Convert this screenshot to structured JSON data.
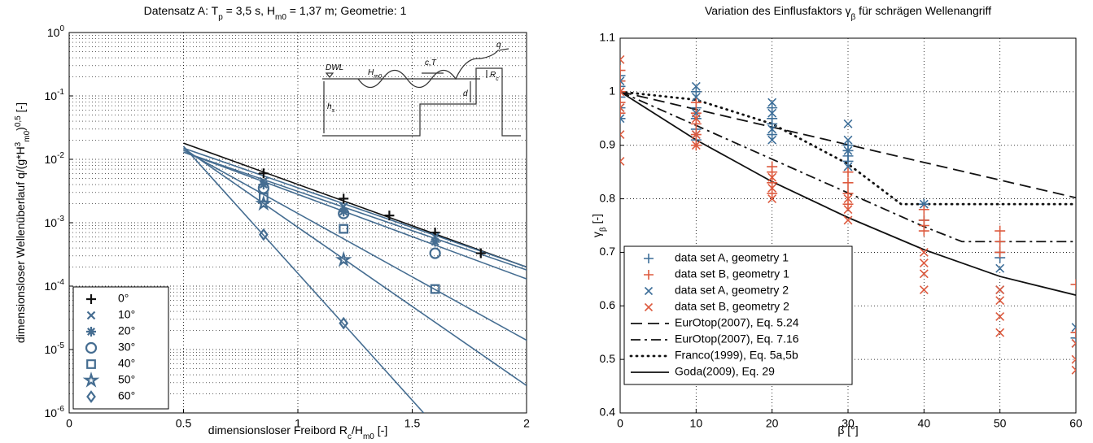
{
  "chart_data": [
    {
      "type": "scatter",
      "yscale": "log",
      "grid": true,
      "minor_grid": true,
      "legend": "lower left",
      "title": [
        {
          "text": "Datensatz A: T"
        },
        {
          "text": "p",
          "script": "sub"
        },
        {
          "text": " = 3,5 s, H"
        },
        {
          "text": "m0",
          "script": "sub"
        },
        {
          "text": " = 1,37 m; Geometrie: 1"
        }
      ],
      "xlabel": [
        {
          "text": "dimensionsloser Freibord R"
        },
        {
          "text": "c",
          "script": "sub"
        },
        {
          "text": "/H"
        },
        {
          "text": "m0",
          "script": "sub"
        },
        {
          "text": " [-]"
        }
      ],
      "ylabel": [
        {
          "text": "dimensionsloser Wellenüberlauf q/(g*H"
        },
        {
          "text": "3",
          "script": "sup"
        },
        {
          "text": "m0",
          "script": "sub"
        },
        {
          "text": ")"
        },
        {
          "text": "0,5",
          "script": "sup"
        },
        {
          "text": " [-]"
        }
      ],
      "xlim": [
        0,
        2
      ],
      "xticks": [
        0,
        0.5,
        1,
        1.5,
        2
      ],
      "ylim": [
        1e-06,
        1
      ],
      "yticks": [
        {
          "value": 1e-06,
          "label": "10",
          "exponent": "-6"
        },
        {
          "value": 1e-05,
          "label": "10",
          "exponent": "-5"
        },
        {
          "value": 0.0001,
          "label": "10",
          "exponent": "-4"
        },
        {
          "value": 0.001,
          "label": "10",
          "exponent": "-3"
        },
        {
          "value": 0.01,
          "label": "10",
          "exponent": "-2"
        },
        {
          "value": 0.1,
          "label": "10",
          "exponent": "-1"
        },
        {
          "value": 1,
          "label": "10",
          "exponent": "0"
        }
      ],
      "inset_labels": [
        [
          "DWL"
        ],
        [
          "H",
          "m0"
        ],
        [
          "c,T"
        ],
        [
          "q"
        ],
        [
          "R",
          "c"
        ],
        [
          "d"
        ],
        [
          "h",
          "s"
        ]
      ],
      "series": [
        {
          "name": "0°",
          "marker": "plus",
          "color": "#111111",
          "x": [
            0.85,
            1.2,
            1.4,
            1.6,
            1.8
          ],
          "values": [
            0.006,
            0.0024,
            0.0013,
            0.0007,
            0.00033
          ],
          "fit_x": [
            0.5,
            2
          ],
          "fit_values": [
            0.018,
            0.0002
          ]
        },
        {
          "name": "10°",
          "marker": "x",
          "color": "#456d91",
          "x": [
            0.85,
            1.2,
            1.6
          ],
          "values": [
            0.0045,
            0.0018,
            0.0006
          ],
          "fit_x": [
            0.5,
            2
          ],
          "fit_values": [
            0.015,
            0.0002
          ]
        },
        {
          "name": "20°",
          "marker": "asterisk",
          "color": "#456d91",
          "x": [
            0.85,
            1.2,
            1.6
          ],
          "values": [
            0.004,
            0.0015,
            0.0005
          ],
          "fit_x": [
            0.5,
            2
          ],
          "fit_values": [
            0.013,
            0.00018
          ]
        },
        {
          "name": "30°",
          "marker": "circle",
          "color": "#456d91",
          "x": [
            0.85,
            1.2,
            1.6
          ],
          "values": [
            0.0035,
            0.0014,
            0.00033
          ],
          "fit_x": [
            0.5,
            2
          ],
          "fit_values": [
            0.013,
            0.00013
          ]
        },
        {
          "name": "40°",
          "marker": "square",
          "color": "#456d91",
          "x": [
            0.85,
            1.2,
            1.6
          ],
          "values": [
            0.0025,
            0.0008,
            9e-05
          ],
          "fit_x": [
            0.5,
            2
          ],
          "fit_values": [
            0.014,
            1.4e-05
          ]
        },
        {
          "name": "50°",
          "marker": "star",
          "color": "#456d91",
          "x": [
            0.85,
            1.2
          ],
          "values": [
            0.002,
            0.00026
          ],
          "fit_x": [
            0.5,
            2
          ],
          "fit_values": [
            0.015,
            2.7e-06
          ]
        },
        {
          "name": "60°",
          "marker": "diamond",
          "color": "#456d91",
          "x": [
            0.85,
            1.2
          ],
          "values": [
            0.00065,
            2.6e-05
          ],
          "fit_x": [
            0.5,
            1.55
          ],
          "fit_values": [
            0.016,
            1e-06
          ]
        }
      ]
    },
    {
      "type": "scatter",
      "grid": true,
      "legend": "lower left",
      "title": [
        {
          "text": "Variation des Einflusfaktors γ"
        },
        {
          "text": "β",
          "script": "sub"
        },
        {
          "text": " für schrägen Wellenangriff"
        }
      ],
      "xlabel": [
        {
          "text": "β [°]"
        }
      ],
      "ylabel": [
        {
          "text": "γ"
        },
        {
          "text": "β",
          "script": "sub"
        },
        {
          "text": " [-]"
        }
      ],
      "xlim": [
        0,
        60
      ],
      "xticks": [
        0,
        10,
        20,
        30,
        40,
        50,
        60
      ],
      "ylim": [
        0.4,
        1.1
      ],
      "yticks": [
        0.4,
        0.5,
        0.6,
        0.7,
        0.8,
        0.9,
        1,
        1.1
      ],
      "series": [
        {
          "name": "data set A, geometry 1",
          "marker": "plus",
          "color": "#3e6f99",
          "x": [
            0,
            0,
            0,
            0,
            0,
            0,
            0,
            10,
            10,
            10,
            10,
            10,
            20,
            20,
            20,
            20,
            30,
            30,
            30,
            30,
            40,
            40,
            50,
            50,
            60,
            60
          ],
          "values": [
            0.95,
            0.97,
            0.99,
            1.0,
            1.01,
            1.02,
            1.03,
            0.91,
            0.93,
            0.95,
            0.97,
            1.0,
            0.92,
            0.94,
            0.95,
            0.97,
            0.87,
            0.88,
            0.89,
            0.9,
            0.76,
            0.79,
            0.69,
            0.7,
            0.54,
            0.55
          ]
        },
        {
          "name": "data set B, geometry 1",
          "marker": "plus",
          "color": "#dd5a3e",
          "x": [
            0,
            0,
            0,
            0,
            0,
            10,
            10,
            10,
            10,
            10,
            20,
            20,
            20,
            20,
            30,
            30,
            30,
            30,
            40,
            40,
            40,
            40,
            50,
            50,
            50,
            60,
            60
          ],
          "values": [
            0.96,
            0.98,
            1.0,
            1.02,
            1.04,
            0.9,
            0.92,
            0.94,
            0.96,
            0.98,
            0.81,
            0.83,
            0.85,
            0.86,
            0.79,
            0.81,
            0.83,
            0.85,
            0.74,
            0.75,
            0.76,
            0.78,
            0.7,
            0.72,
            0.74,
            0.64,
            0.55
          ]
        },
        {
          "name": "data set A, geometry 2",
          "marker": "x",
          "color": "#3e6f99",
          "x": [
            0,
            0,
            0,
            0,
            10,
            10,
            10,
            10,
            20,
            20,
            20,
            20,
            30,
            30,
            30,
            30,
            40,
            50,
            50,
            60,
            60
          ],
          "values": [
            0.95,
            0.97,
            1.0,
            1.02,
            0.92,
            0.96,
            0.99,
            1.01,
            0.91,
            0.93,
            0.96,
            0.98,
            0.86,
            0.89,
            0.91,
            0.94,
            0.79,
            0.63,
            0.67,
            0.53,
            0.56
          ]
        },
        {
          "name": "data set B, geometry 2",
          "marker": "x",
          "color": "#dd5a3e",
          "x": [
            0,
            0,
            0,
            0,
            0,
            10,
            10,
            10,
            20,
            20,
            20,
            30,
            30,
            30,
            40,
            40,
            40,
            40,
            50,
            50,
            50,
            50,
            60,
            60,
            60
          ],
          "values": [
            0.87,
            0.92,
            0.97,
            1.0,
            1.06,
            0.9,
            0.92,
            0.95,
            0.8,
            0.82,
            0.84,
            0.76,
            0.78,
            0.8,
            0.63,
            0.66,
            0.68,
            0.7,
            0.55,
            0.58,
            0.61,
            0.63,
            0.48,
            0.5,
            0.53
          ]
        },
        {
          "name": "EurOtop(2007), Eq. 5.24",
          "style": "dashed",
          "color": "#111111",
          "x": [
            0,
            60
          ],
          "values": [
            1,
            0.802
          ]
        },
        {
          "name": "EurOtop(2007), Eq. 7.16",
          "style": "dashdot",
          "color": "#111111",
          "x": [
            0,
            10,
            20,
            30,
            40,
            45,
            60
          ],
          "values": [
            1,
            0.937,
            0.874,
            0.811,
            0.748,
            0.72,
            0.72
          ]
        },
        {
          "name": "Franco(1999), Eq. 5a,5b",
          "style": "dotted",
          "color": "#111111",
          "x": [
            0,
            10,
            20,
            30,
            37,
            60
          ],
          "values": [
            1,
            0.985,
            0.94,
            0.865,
            0.79,
            0.79
          ]
        },
        {
          "name": "Goda(2009), Eq. 29",
          "style": "solid",
          "color": "#111111",
          "x": [
            0,
            10,
            20,
            30,
            40,
            50,
            60
          ],
          "values": [
            1,
            0.91,
            0.832,
            0.765,
            0.705,
            0.655,
            0.62
          ]
        }
      ]
    }
  ]
}
